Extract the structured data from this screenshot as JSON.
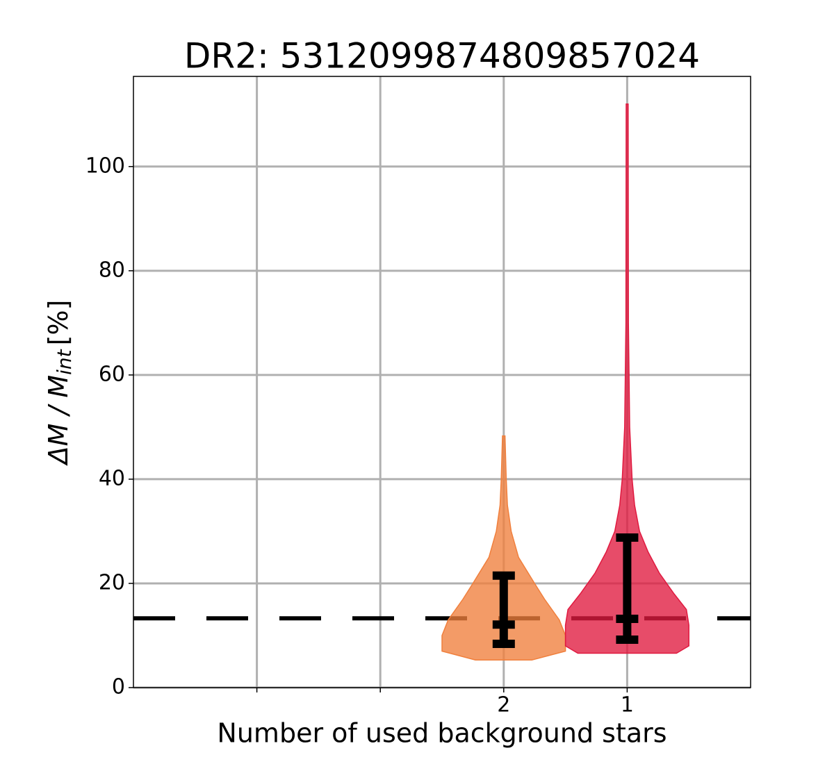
{
  "chart_data": {
    "type": "violin",
    "title": "DR2: 5312099874809857024",
    "xlabel": "Number of used background stars",
    "ylabel": {
      "main": "ΔM / M",
      "sub": "int",
      "unit": "[%]"
    },
    "xlim": [
      0,
      5
    ],
    "xticks": [
      {
        "value": 1,
        "label": null
      },
      {
        "value": 2,
        "label": null
      },
      {
        "value": 3,
        "label": "2"
      },
      {
        "value": 4,
        "label": "1"
      }
    ],
    "ylim": [
      0,
      117.3
    ],
    "yticks": [
      0,
      20,
      40,
      60,
      80,
      100
    ],
    "grid": true,
    "reference_line": 13.3,
    "series": [
      {
        "x": 3,
        "color": "#f07f3c",
        "profile_y": [
          5.3,
          7,
          10,
          13,
          17,
          20,
          25,
          30,
          35,
          40,
          48.3
        ],
        "profile_width": [
          0.23,
          0.5,
          0.5,
          0.45,
          0.33,
          0.25,
          0.12,
          0.06,
          0.03,
          0.02,
          0.01
        ],
        "low": 8.4,
        "median": 12.1,
        "high": 21.5
      },
      {
        "x": 4,
        "color": "#e0193f",
        "profile_y": [
          6.6,
          8,
          12,
          15,
          18,
          22,
          26,
          30,
          35,
          40,
          50,
          70,
          112
        ],
        "profile_width": [
          0.4,
          0.5,
          0.5,
          0.48,
          0.38,
          0.26,
          0.17,
          0.1,
          0.06,
          0.04,
          0.02,
          0.01,
          0.008
        ],
        "low": 9.2,
        "median": 13.2,
        "high": 28.8
      }
    ]
  }
}
